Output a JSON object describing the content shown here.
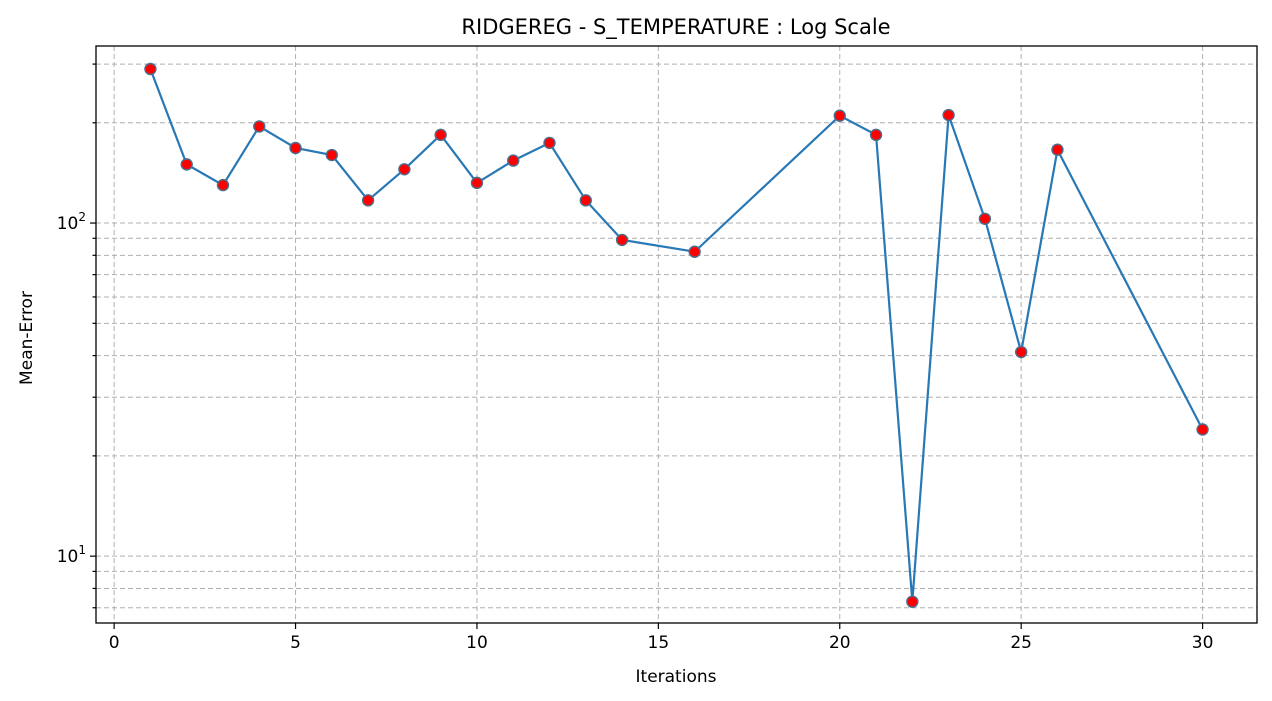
{
  "chart_data": {
    "type": "line",
    "title": "RIDGEREG - S_TEMPERATURE : Log Scale",
    "xlabel": "Iterations",
    "ylabel": "Mean-Error",
    "xscale": "linear",
    "yscale": "log",
    "xlim": [
      -0.5,
      31.5
    ],
    "ylim": [
      6.3,
      340
    ],
    "xticks": [
      0,
      5,
      10,
      15,
      20,
      25,
      30
    ],
    "yticks": [
      {
        "value": 10,
        "base": "10",
        "exp": "1"
      },
      {
        "value": 100,
        "base": "10",
        "exp": "2"
      }
    ],
    "grid": true,
    "line_color": "#2878b5",
    "marker_face_color": "#ff0000",
    "marker_edge_color": "#4a6f8f",
    "series": [
      {
        "x": [
          1,
          2,
          3,
          4,
          5,
          6,
          7,
          8,
          9,
          10,
          11,
          12,
          13,
          14,
          16,
          20,
          21,
          22,
          23,
          24,
          25,
          26,
          30
        ],
        "y": [
          290,
          150,
          130,
          195,
          168,
          160,
          117,
          145,
          184,
          132,
          154,
          174,
          117,
          89,
          82,
          210,
          184,
          7.3,
          211,
          103,
          41,
          166,
          24
        ]
      }
    ]
  }
}
